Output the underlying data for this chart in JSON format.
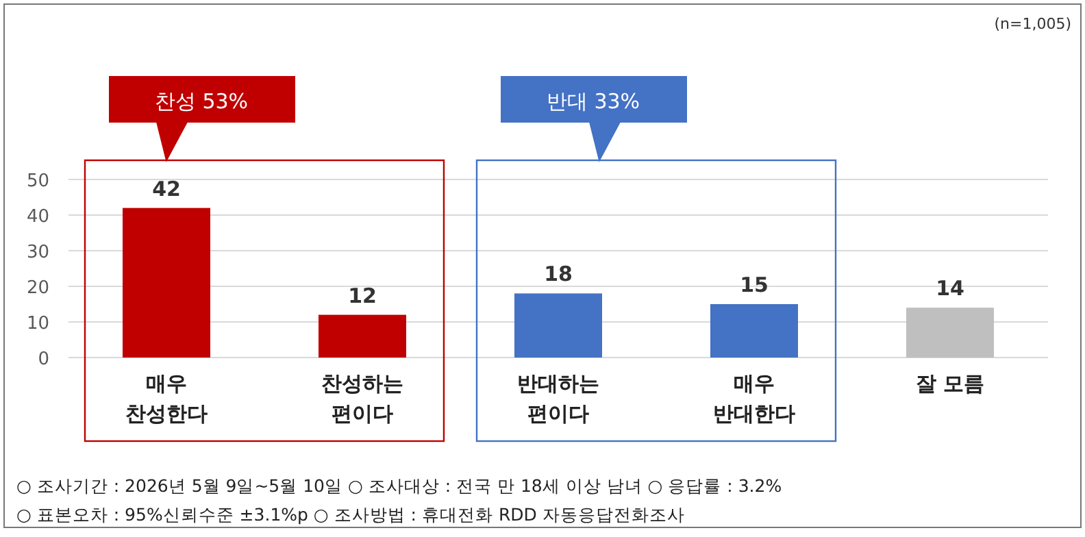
{
  "chart_data": {
    "type": "bar",
    "categories": [
      "매우 찬성한다",
      "찬성하는 편이다",
      "반대하는 편이다",
      "매우 반대한다",
      "잘 모름"
    ],
    "values": [
      42,
      12,
      18,
      15,
      14
    ],
    "colors": [
      "#c00000",
      "#c00000",
      "#4472c4",
      "#4472c4",
      "#bfbfbf"
    ],
    "ylim": [
      0,
      50
    ],
    "yticks": [
      0,
      10,
      20,
      30,
      40,
      50
    ],
    "grid": "y",
    "data_labels": true,
    "annotations": [
      "(n=1,005)",
      "찬성 53%",
      "반대 33%",
      "○ 조사기간 : 2026년 5월 9일~5월 10일 ○ 조사대상 : 전국 만 18세 이상 남녀 ○ 응답률 : 3.2%",
      "○ 표본오차 : 95%신뢰수준 ±3.1%p ○ 조사방법 : 휴대전화 RDD 자동응답전화조사"
    ]
  }
}
